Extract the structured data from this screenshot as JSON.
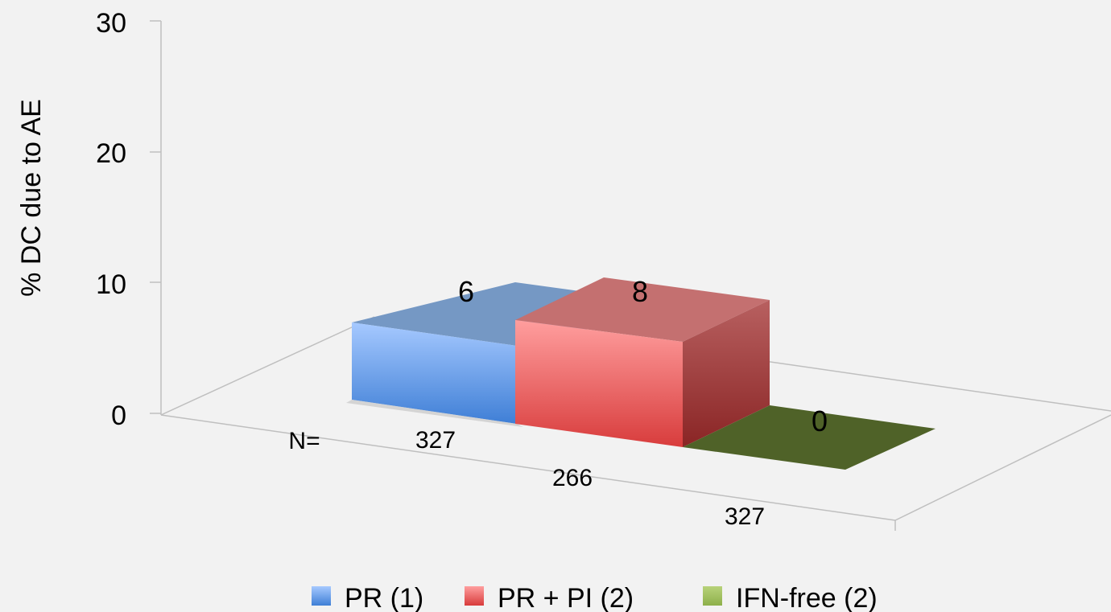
{
  "chart_data": {
    "type": "bar",
    "ylabel": "% DC due to AE",
    "ylim": [
      0,
      30
    ],
    "yticks": [
      "0",
      "10",
      "20",
      "30"
    ],
    "n_prefix": "N=",
    "series": [
      {
        "name": "PR (1)",
        "value": 6,
        "value_label": "6",
        "n": "327",
        "color": "#4f81bd"
      },
      {
        "name": "PR + PI (2)",
        "value": 8,
        "value_label": "8",
        "n": "266",
        "color": "#e05555"
      },
      {
        "name": "IFN-free (2)",
        "value": 0,
        "value_label": "0",
        "n": "327",
        "color": "#9bbb59"
      }
    ],
    "legend_position": "bottom",
    "grid": false
  }
}
